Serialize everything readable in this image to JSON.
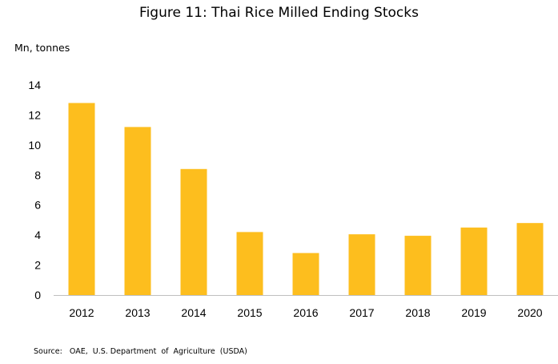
{
  "chart_data": {
    "type": "bar",
    "title": "Figure 11: Thai Rice Milled Ending Stocks",
    "ylabel": "Mn, tonnes",
    "xlabel": "",
    "categories": [
      "2012",
      "2013",
      "2014",
      "2015",
      "2016",
      "2017",
      "2018",
      "2019",
      "2020"
    ],
    "values": [
      12.8,
      11.2,
      8.4,
      4.2,
      2.8,
      4.05,
      3.95,
      4.5,
      4.8
    ],
    "ylim": [
      0,
      14
    ],
    "yticks": [
      "0",
      "2",
      "4",
      "6",
      "8",
      "10",
      "12",
      "14"
    ],
    "grid": false,
    "legend": "none",
    "bar_color": "#FDBE1E",
    "axis_color": "#BFBFBF",
    "source": "Source:   OAE,  U.S. Department  of  Agriculture  (USDA)"
  }
}
